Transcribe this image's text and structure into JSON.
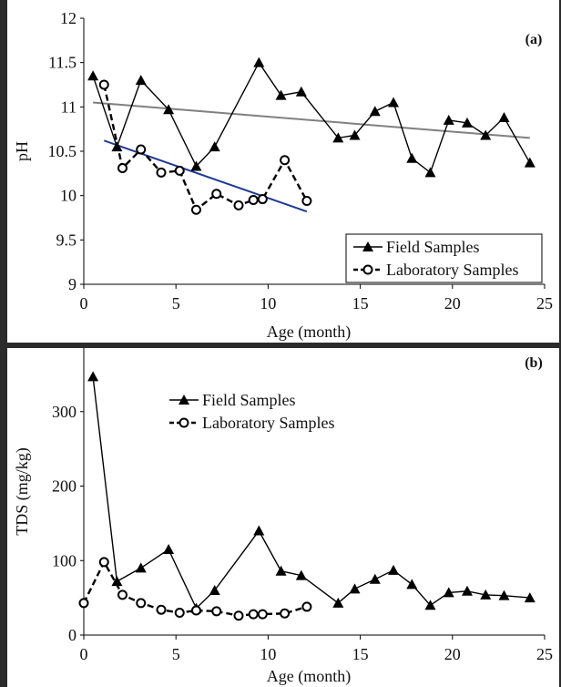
{
  "chart_data": [
    {
      "type": "line",
      "panel_label": "(a)",
      "xlabel": "Age (month)",
      "ylabel": "pH",
      "xlim": [
        0,
        25
      ],
      "ylim": [
        9,
        12
      ],
      "xticks": [
        0,
        5,
        10,
        15,
        20,
        25
      ],
      "yticks": [
        9,
        9.5,
        10,
        10.5,
        11,
        11.5,
        12
      ],
      "legend_position": "bottom-right",
      "series": [
        {
          "name": "Field Samples",
          "marker": "triangle",
          "line_style": "solid",
          "color": "#000000",
          "x": [
            0.5,
            1.8,
            3.1,
            4.6,
            6.1,
            7.1,
            9.5,
            10.7,
            11.8,
            13.8,
            14.7,
            15.8,
            16.8,
            17.8,
            18.8,
            19.8,
            20.8,
            21.8,
            22.8,
            24.2
          ],
          "y": [
            11.35,
            10.55,
            11.3,
            10.97,
            10.33,
            10.55,
            11.5,
            11.13,
            11.17,
            10.65,
            10.68,
            10.95,
            11.05,
            10.42,
            10.26,
            10.85,
            10.82,
            10.68,
            10.88,
            10.37
          ]
        },
        {
          "name": "Laboratory Samples",
          "marker": "open-circle",
          "line_style": "dashed",
          "color": "#000000",
          "x": [
            1.1,
            2.1,
            3.1,
            4.2,
            5.2,
            6.1,
            7.2,
            8.4,
            9.2,
            9.7,
            10.9,
            12.1
          ],
          "y": [
            11.25,
            10.31,
            10.52,
            10.26,
            10.28,
            9.84,
            10.02,
            9.89,
            9.95,
            9.96,
            10.4,
            9.94
          ]
        }
      ],
      "trendlines": [
        {
          "color": "#808080",
          "x": [
            0.5,
            24.2
          ],
          "y": [
            11.05,
            10.65
          ]
        },
        {
          "color": "#1f3a93",
          "x": [
            1.1,
            12.1
          ],
          "y": [
            10.62,
            9.82
          ]
        }
      ]
    },
    {
      "type": "line",
      "panel_label": "(b)",
      "xlabel": "Age (month)",
      "ylabel": "TDS (mg/kg)",
      "xlim": [
        0,
        25
      ],
      "ylim": [
        0,
        400
      ],
      "xticks": [
        0,
        5,
        10,
        15,
        20,
        25
      ],
      "yticks": [
        0,
        100,
        200,
        300,
        400
      ],
      "legend_position": "top-center",
      "series": [
        {
          "name": "Field Samples",
          "marker": "triangle",
          "line_style": "solid",
          "color": "#000000",
          "x": [
            0.5,
            1.8,
            3.1,
            4.6,
            6.1,
            7.1,
            9.5,
            10.7,
            11.8,
            13.8,
            14.7,
            15.8,
            16.8,
            17.8,
            18.8,
            19.8,
            20.8,
            21.8,
            22.8,
            24.2
          ],
          "y": [
            347,
            72,
            90,
            115,
            36,
            60,
            140,
            86,
            80,
            43,
            62,
            75,
            87,
            68,
            40,
            57,
            59,
            54,
            53,
            50
          ]
        },
        {
          "name": "Laboratory Samples",
          "marker": "open-circle",
          "line_style": "dashed",
          "color": "#000000",
          "x": [
            0,
            1.1,
            2.1,
            3.1,
            4.2,
            5.2,
            6.1,
            7.2,
            8.4,
            9.2,
            9.7,
            10.9,
            12.1
          ],
          "y": [
            43,
            98,
            54,
            43,
            34,
            30,
            33,
            32,
            26,
            28,
            28,
            29,
            38
          ]
        }
      ]
    }
  ]
}
